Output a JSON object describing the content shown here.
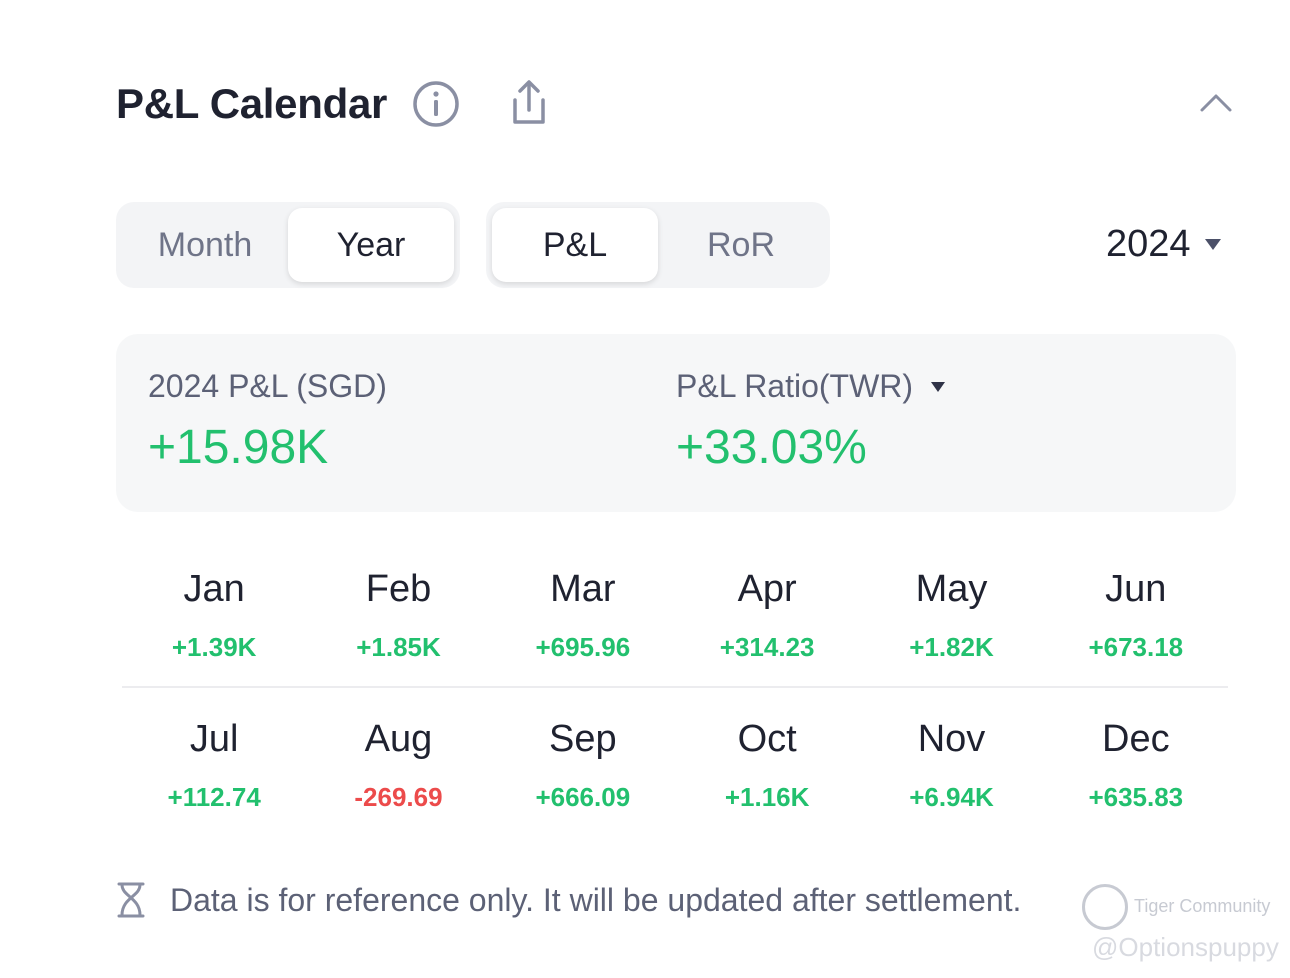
{
  "header": {
    "title": "P&L Calendar",
    "icons": [
      "info-icon",
      "share-icon",
      "chevron-up-icon"
    ]
  },
  "period_toggle": {
    "options": [
      "Month",
      "Year"
    ],
    "selected": "Year"
  },
  "metric_toggle": {
    "options": [
      "P&L",
      "RoR"
    ],
    "selected": "P&L"
  },
  "year_select": {
    "value": "2024"
  },
  "summary": {
    "pnl_label": "2024 P&L (SGD)",
    "pnl_value": "+15.98K",
    "ratio_label": "P&L Ratio(TWR)",
    "ratio_value": "+33.03%"
  },
  "months": [
    {
      "name": "Jan",
      "value": "+1.39K"
    },
    {
      "name": "Feb",
      "value": "+1.85K"
    },
    {
      "name": "Mar",
      "value": "+695.96"
    },
    {
      "name": "Apr",
      "value": "+314.23"
    },
    {
      "name": "May",
      "value": "+1.82K"
    },
    {
      "name": "Jun",
      "value": "+673.18"
    },
    {
      "name": "Jul",
      "value": "+112.74"
    },
    {
      "name": "Aug",
      "value": "-269.69"
    },
    {
      "name": "Sep",
      "value": "+666.09"
    },
    {
      "name": "Oct",
      "value": "+1.16K"
    },
    {
      "name": "Nov",
      "value": "+6.94K"
    },
    {
      "name": "Dec",
      "value": "+635.83"
    }
  ],
  "footer": {
    "note": "Data is for reference only. It will be updated after settlement."
  },
  "watermark": {
    "brand": "Tiger Community",
    "handle": "@Optionspuppy"
  },
  "colors": {
    "positive": "#22c06e",
    "negative": "#ec4b4b"
  }
}
